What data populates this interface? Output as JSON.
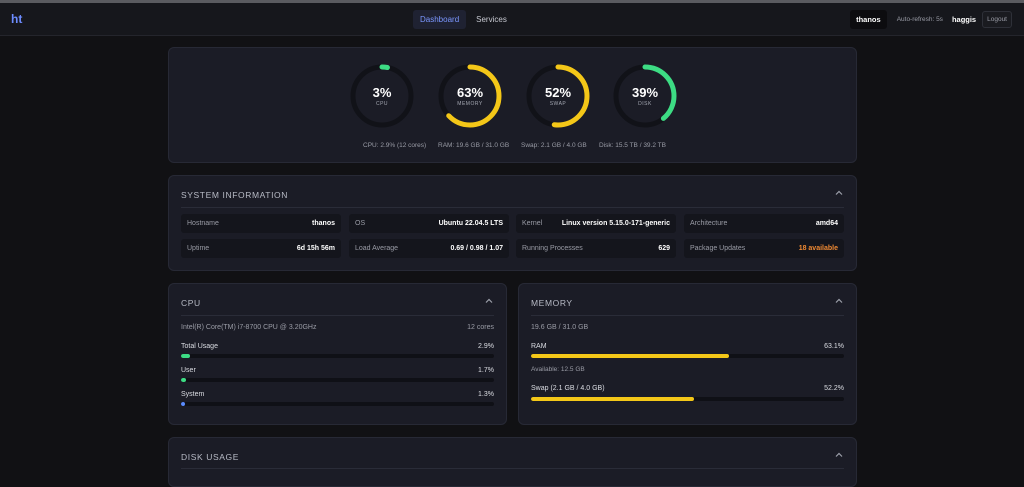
{
  "nav": {
    "logo": "ht",
    "tabs": [
      {
        "label": "Dashboard",
        "active": true
      },
      {
        "label": "Services",
        "active": false
      }
    ],
    "host": "thanos",
    "refresh": "Auto-refresh: 5s",
    "user": "haggis",
    "logout": "Logout"
  },
  "gauges": [
    {
      "value": "3%",
      "pct": 3,
      "label": "CPU",
      "color": "#3ddc84",
      "sub": "CPU: 2.9% (12 cores)"
    },
    {
      "value": "63%",
      "pct": 63,
      "label": "MEMORY",
      "color": "#f4c718",
      "sub": "RAM: 19.6 GB / 31.0 GB"
    },
    {
      "value": "52%",
      "pct": 52,
      "label": "SWAP",
      "color": "#f4c718",
      "sub": "Swap: 2.1 GB / 4.0 GB"
    },
    {
      "value": "39%",
      "pct": 39,
      "label": "DISK",
      "color": "#3ddc84",
      "sub": "Disk: 15.5 TB / 39.2 TB"
    }
  ],
  "sysinfo": {
    "title": "SYSTEM INFORMATION",
    "cells": [
      {
        "k": "Hostname",
        "v": "thanos"
      },
      {
        "k": "OS",
        "v": "Ubuntu 22.04.5 LTS"
      },
      {
        "k": "Kernel",
        "v": "Linux version 5.15.0-171-generic"
      },
      {
        "k": "Architecture",
        "v": "amd64"
      },
      {
        "k": "Uptime",
        "v": "6d 15h 56m"
      },
      {
        "k": "Load Average",
        "v": "0.69 / 0.98 / 1.07"
      },
      {
        "k": "Running Processes",
        "v": "629"
      },
      {
        "k": "Package Updates",
        "v": "18 available"
      }
    ]
  },
  "cpu": {
    "title": "CPU",
    "model": "Intel(R) Core(TM) i7-8700 CPU @ 3.20GHz",
    "cores": "12 cores",
    "rows": [
      {
        "label": "Total Usage",
        "value": "2.9%",
        "pct": 2.9,
        "color": "#3ddc84"
      },
      {
        "label": "User",
        "value": "1.7%",
        "pct": 1.7,
        "color": "#3ddc84"
      },
      {
        "label": "System",
        "value": "1.3%",
        "pct": 1.3,
        "color": "#5b8cff"
      }
    ]
  },
  "memory": {
    "title": "MEMORY",
    "summary": "19.6 GB / 31.0 GB",
    "ram_label": "RAM",
    "ram_value": "63.1%",
    "ram_pct": 63.1,
    "available": "Available: 12.5 GB",
    "swap_label": "Swap (2.1 GB / 4.0 GB)",
    "swap_value": "52.2%",
    "swap_pct": 52.2,
    "bar_color": "#f4c718"
  },
  "disk": {
    "title": "DISK USAGE"
  }
}
